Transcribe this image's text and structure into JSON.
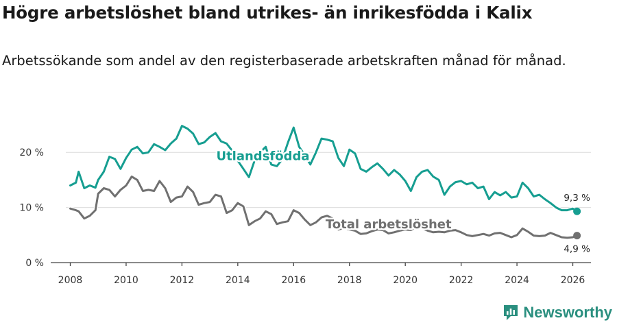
{
  "header": {
    "title": "Högre arbetslöshet bland utrikes- än inrikesfödda i Kalix",
    "subtitle": "Arbetssökande som andel av den registerbaserade arbetskraften månad för månad."
  },
  "brand": {
    "name": "Newsworthy",
    "icon": "newsworthy-logo-icon"
  },
  "chart_data": {
    "type": "line",
    "title": "Högre arbetslöshet bland utrikes- än inrikesfödda i Kalix",
    "subtitle": "Arbetssökande som andel av den registerbaserade arbetskraften månad för månad.",
    "xlabel": "",
    "ylabel": "",
    "xlim": [
      2007.3,
      2026.65
    ],
    "ylim": [
      0,
      25.5
    ],
    "x_ticks": [
      2008,
      2010,
      2012,
      2014,
      2016,
      2018,
      2020,
      2022,
      2024,
      2026
    ],
    "x_tick_labels": [
      "2008",
      "2010",
      "2012",
      "2014",
      "2016",
      "2018",
      "2020",
      "2022",
      "2024",
      "2026"
    ],
    "y_ticks": [
      0,
      10,
      20
    ],
    "y_tick_labels": [
      "0 %",
      "10 %",
      "20 %"
    ],
    "grid": true,
    "series": [
      {
        "name": "Utlandsfödda",
        "color": "#169e91",
        "label_pos": [
          2014.9,
          18.6
        ],
        "end_label": "9,3 %",
        "x": [
          2008.0,
          2008.2,
          2008.3,
          2008.5,
          2008.7,
          2008.9,
          2009.0,
          2009.2,
          2009.4,
          2009.6,
          2009.8,
          2010.0,
          2010.2,
          2010.4,
          2010.6,
          2010.8,
          2011.0,
          2011.2,
          2011.4,
          2011.6,
          2011.8,
          2012.0,
          2012.2,
          2012.4,
          2012.6,
          2012.8,
          2013.0,
          2013.2,
          2013.4,
          2013.6,
          2013.8,
          2014.0,
          2014.2,
          2014.4,
          2014.6,
          2014.8,
          2015.0,
          2015.2,
          2015.4,
          2015.6,
          2015.8,
          2016.0,
          2016.2,
          2016.4,
          2016.6,
          2016.8,
          2017.0,
          2017.2,
          2017.4,
          2017.6,
          2017.8,
          2018.0,
          2018.2,
          2018.4,
          2018.6,
          2018.8,
          2019.0,
          2019.2,
          2019.4,
          2019.6,
          2019.8,
          2020.0,
          2020.2,
          2020.4,
          2020.6,
          2020.8,
          2021.0,
          2021.2,
          2021.4,
          2021.6,
          2021.8,
          2022.0,
          2022.2,
          2022.4,
          2022.6,
          2022.8,
          2023.0,
          2023.2,
          2023.4,
          2023.6,
          2023.8,
          2024.0,
          2024.2,
          2024.4,
          2024.6,
          2024.8,
          2025.0,
          2025.2,
          2025.4,
          2025.6,
          2025.8,
          2026.0,
          2026.15
        ],
        "y": [
          14.0,
          14.5,
          16.5,
          13.5,
          14.0,
          13.6,
          15.0,
          16.5,
          19.2,
          18.8,
          17.0,
          19.0,
          20.5,
          21.0,
          19.8,
          20.0,
          21.5,
          21.0,
          20.4,
          21.6,
          22.5,
          24.8,
          24.3,
          23.4,
          21.5,
          21.8,
          22.8,
          23.5,
          22.0,
          21.6,
          20.3,
          18.5,
          17.0,
          15.5,
          18.5,
          20.0,
          21.0,
          17.8,
          17.5,
          18.8,
          21.8,
          24.5,
          21.0,
          19.5,
          17.8,
          20.0,
          22.5,
          22.3,
          22.0,
          19.0,
          17.5,
          20.5,
          19.8,
          17.0,
          16.5,
          17.3,
          18.0,
          17.0,
          15.8,
          16.8,
          16.0,
          14.8,
          13.0,
          15.5,
          16.5,
          16.8,
          15.6,
          15.0,
          12.3,
          13.8,
          14.6,
          14.8,
          14.2,
          14.5,
          13.5,
          13.8,
          11.5,
          12.8,
          12.2,
          12.8,
          11.8,
          12.0,
          14.5,
          13.5,
          12.0,
          12.3,
          11.5,
          10.8,
          10.0,
          9.5,
          9.5,
          9.8,
          9.3
        ]
      },
      {
        "name": "Total arbetslöshet",
        "color": "#707070",
        "label_pos": [
          2019.4,
          6.2
        ],
        "end_label": "4,9 %",
        "x": [
          2008.0,
          2008.2,
          2008.3,
          2008.5,
          2008.7,
          2008.9,
          2009.0,
          2009.2,
          2009.4,
          2009.6,
          2009.8,
          2010.0,
          2010.2,
          2010.4,
          2010.6,
          2010.8,
          2011.0,
          2011.2,
          2011.4,
          2011.6,
          2011.8,
          2012.0,
          2012.2,
          2012.4,
          2012.6,
          2012.8,
          2013.0,
          2013.2,
          2013.4,
          2013.6,
          2013.8,
          2014.0,
          2014.2,
          2014.4,
          2014.6,
          2014.8,
          2015.0,
          2015.2,
          2015.4,
          2015.6,
          2015.8,
          2016.0,
          2016.2,
          2016.4,
          2016.6,
          2016.8,
          2017.0,
          2017.2,
          2017.4,
          2017.6,
          2017.8,
          2018.0,
          2018.2,
          2018.4,
          2018.6,
          2018.8,
          2019.0,
          2019.2,
          2019.4,
          2019.6,
          2019.8,
          2020.0,
          2020.2,
          2020.4,
          2020.6,
          2020.8,
          2021.0,
          2021.2,
          2021.4,
          2021.6,
          2021.8,
          2022.0,
          2022.2,
          2022.4,
          2022.6,
          2022.8,
          2023.0,
          2023.2,
          2023.4,
          2023.6,
          2023.8,
          2024.0,
          2024.2,
          2024.4,
          2024.6,
          2024.8,
          2025.0,
          2025.2,
          2025.4,
          2025.6,
          2025.8,
          2026.0,
          2026.15
        ],
        "y": [
          9.8,
          9.5,
          9.3,
          8.0,
          8.5,
          9.5,
          12.5,
          13.5,
          13.2,
          12.0,
          13.2,
          14.0,
          15.6,
          15.0,
          13.0,
          13.2,
          13.0,
          14.8,
          13.5,
          11.0,
          11.8,
          12.0,
          13.8,
          12.8,
          10.5,
          10.8,
          11.0,
          12.3,
          12.0,
          9.0,
          9.5,
          10.8,
          10.2,
          6.8,
          7.5,
          8.0,
          9.3,
          8.8,
          7.0,
          7.3,
          7.5,
          9.5,
          9.0,
          7.8,
          6.8,
          7.3,
          8.2,
          8.5,
          8.0,
          6.0,
          6.3,
          6.0,
          5.8,
          5.2,
          5.3,
          5.7,
          6.0,
          5.9,
          5.3,
          5.5,
          5.8,
          6.0,
          5.9,
          6.5,
          6.2,
          5.8,
          5.5,
          5.6,
          5.5,
          5.8,
          5.9,
          5.5,
          5.0,
          4.8,
          5.0,
          5.2,
          4.9,
          5.3,
          5.4,
          5.0,
          4.6,
          5.0,
          6.2,
          5.6,
          4.9,
          4.8,
          4.9,
          5.4,
          5.0,
          4.6,
          4.5,
          4.6,
          4.9
        ]
      }
    ]
  }
}
